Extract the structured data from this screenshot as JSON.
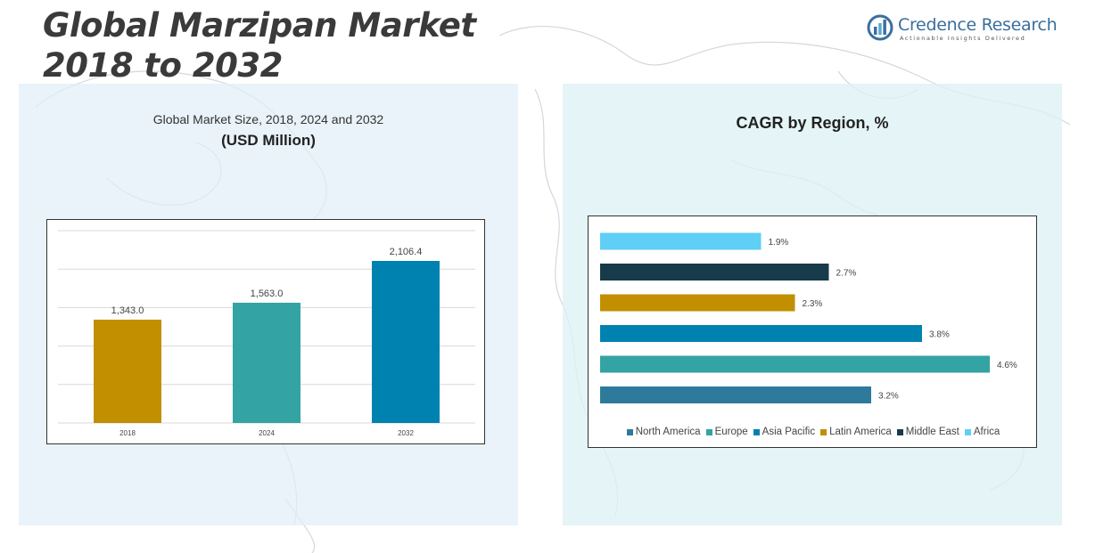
{
  "header": {
    "title_line1": "Global Marzipan Market",
    "title_line2": "2018 to 2032"
  },
  "logo": {
    "name": "Credence Research",
    "tagline": "Actionable Insights Delivered"
  },
  "chart_data": [
    {
      "type": "bar",
      "title": "Global Market Size, 2018, 2024 and 2032",
      "subtitle": "(USD Million)",
      "categories": [
        "2018",
        "2024",
        "2032"
      ],
      "values": [
        1343.0,
        1563.0,
        2106.4
      ],
      "value_labels": [
        "1,343.0",
        "1,563.0",
        "2,106.4"
      ],
      "colors": [
        "#C28F00",
        "#33A3A3",
        "#0082B1"
      ],
      "ylim": [
        0,
        2500
      ],
      "grid": true,
      "xlabel": "",
      "ylabel": ""
    },
    {
      "type": "bar",
      "orientation": "horizontal",
      "title": "CAGR by Region, %",
      "categories": [
        "North America",
        "Europe",
        "Asia Pacific",
        "Latin America",
        "Middle East",
        "Africa"
      ],
      "values": [
        3.2,
        4.6,
        3.8,
        2.3,
        2.7,
        1.9
      ],
      "value_labels": [
        "3.2%",
        "4.6%",
        "3.8%",
        "2.3%",
        "2.7%",
        "1.9%"
      ],
      "colors": [
        "#2E7A9C",
        "#33A3A3",
        "#0082B1",
        "#C28F00",
        "#173B4A",
        "#5FCFF5"
      ],
      "xlim": [
        0,
        4.6
      ],
      "legend": "bottom",
      "grid": false
    }
  ]
}
